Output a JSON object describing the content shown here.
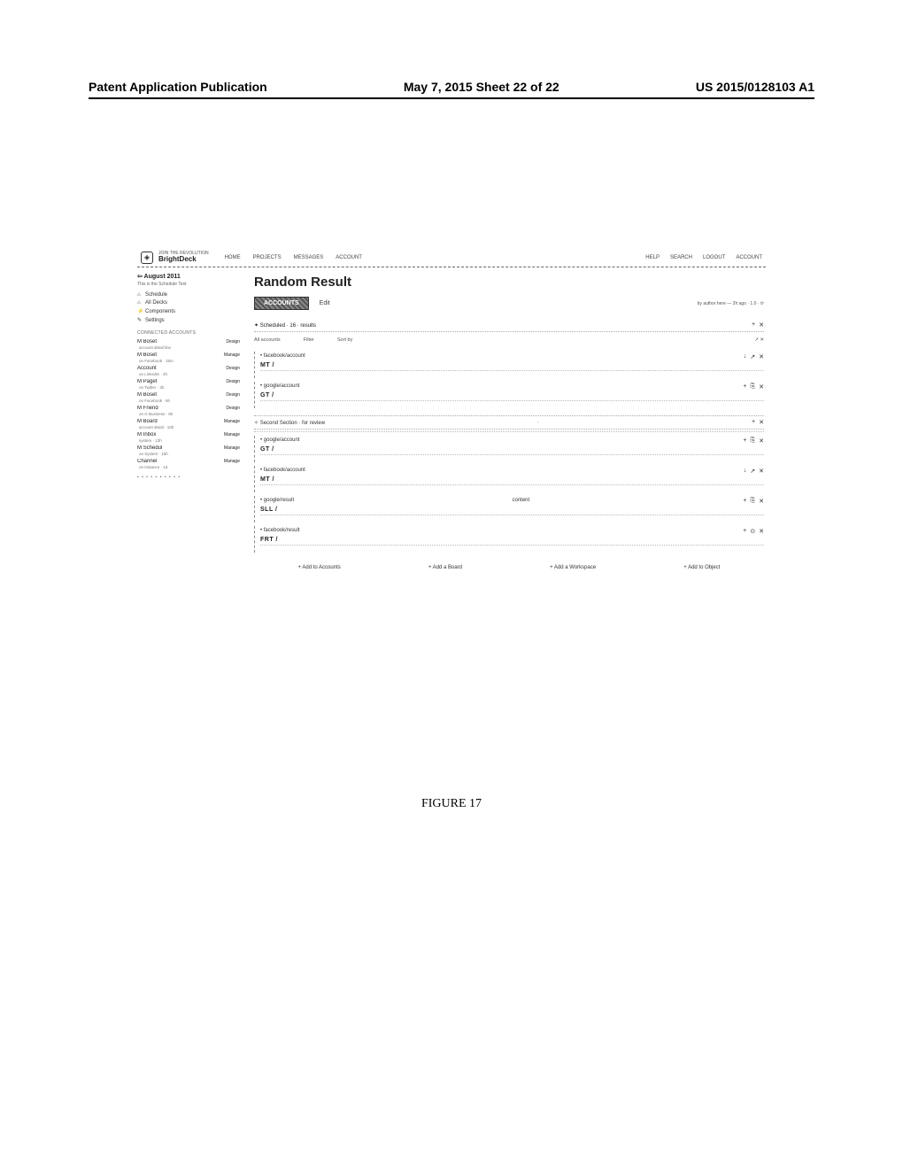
{
  "page_header": {
    "left": "Patent Application Publication",
    "center": "May 7, 2015   Sheet 22 of 22",
    "right": "US 2015/0128103 A1"
  },
  "figure_label": "FIGURE 17",
  "brand": {
    "sub": "JOIN THE REVOLUTION",
    "name": "BrightDeck"
  },
  "topnav": {
    "items": [
      "HOME",
      "PROJECTS",
      "MESSAGES",
      "ACCOUNT"
    ]
  },
  "topnav_right": {
    "items": [
      "HELP",
      "SEARCH",
      "LOGOUT",
      "ACCOUNT"
    ]
  },
  "sidebar": {
    "header": "⇦ August 2011",
    "sub": "This is the Schedule Text",
    "links": [
      {
        "icon": "⌂",
        "label": "Schedule"
      },
      {
        "icon": "⌂",
        "label": "All Decks"
      },
      {
        "icon": "⚡",
        "label": "Components"
      },
      {
        "icon": "✎",
        "label": "Settings"
      }
    ],
    "section_label": "CONNECTED ACCOUNTS",
    "projects": [
      {
        "name": "M Boset",
        "badge": "Design",
        "sub": "account detail line"
      },
      {
        "name": "M Boset",
        "badge": "Manage",
        "sub": "on Facebook · 15m"
      },
      {
        "name": "Account",
        "badge": "Design",
        "sub": "on Linkedin · 2h"
      },
      {
        "name": "M Paget",
        "badge": "Design",
        "sub": "on Twitter · 3h"
      },
      {
        "name": "M Boset",
        "badge": "Design",
        "sub": "on Facebook · 5h"
      },
      {
        "name": "M Friend",
        "badge": "Design",
        "sub": "on G Business · 8h"
      },
      {
        "name": "M Board",
        "badge": "Manage",
        "sub": "account detail · 10h"
      },
      {
        "name": "M Inbox",
        "badge": "Manage",
        "sub": "system · 12h"
      },
      {
        "name": "M Schedul",
        "badge": "Manage",
        "sub": "on System · 15h"
      },
      {
        "name": "Channel",
        "badge": "Manage",
        "sub": "on Instance · 1d"
      }
    ],
    "more": "• • • • • • • • • •"
  },
  "main": {
    "title": "Random Result",
    "tabs": {
      "active": "ACCOUNTS",
      "rest": [
        "Edit"
      ]
    },
    "meta": "by author here  —  2h ago  ·  1.0  ·  ⟳",
    "schedule_section": {
      "label": "✦ Scheduled  ·  16  ·  results",
      "icons": [
        "+",
        "✕"
      ]
    },
    "filters": [
      "All accounts",
      "Filter",
      "Sort by"
    ],
    "filters_right": "↗ ✕",
    "items": [
      {
        "title": "facebook/account",
        "snippet": "MT /",
        "ricons": [
          "↓",
          "↗",
          "✕"
        ]
      },
      {
        "title": "google/account",
        "snippet": "GT /",
        "ricons": [
          "+",
          "⎘",
          "✕"
        ]
      }
    ],
    "subhead1": {
      "label": "✧ Second Section · for review",
      "center": "·",
      "icons": [
        "+",
        "✕"
      ]
    },
    "items2": [
      {
        "title": "google/account",
        "snippet": "GT /",
        "ricons": [
          "+",
          "⎘",
          "✕"
        ]
      },
      {
        "title": "facebook/account",
        "snippet": "MT /",
        "ricons": [
          "↓",
          "↗",
          "✕"
        ]
      }
    ],
    "items3": [
      {
        "title": "google/result",
        "snippet": "SLL /",
        "center": "content",
        "ricons": [
          "+",
          "⎘",
          "✕"
        ]
      },
      {
        "title": "facebook/result",
        "snippet": "FRT /",
        "ricons": [
          "+",
          "⊙",
          "✕"
        ]
      }
    ],
    "bottom_actions": [
      "Add to Accounts",
      "Add a Board",
      "Add a Workspace",
      "Add to Object"
    ]
  }
}
